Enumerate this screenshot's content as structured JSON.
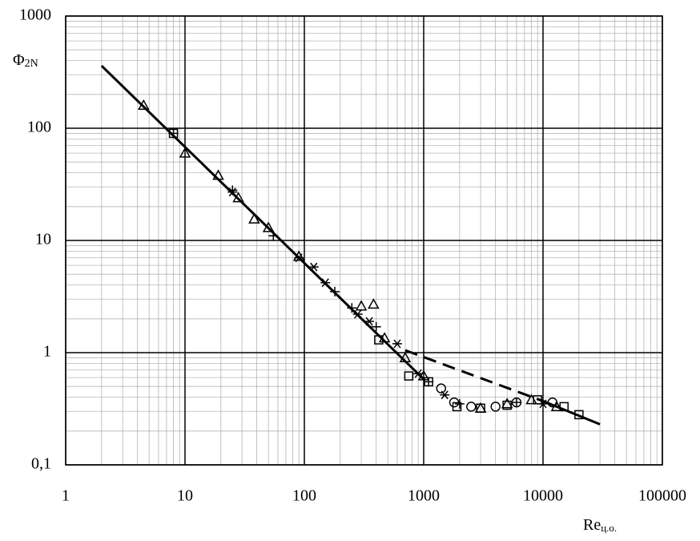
{
  "chart_data": {
    "type": "scatter",
    "y_label": {
      "symbol": "Φ",
      "subscript": "2N"
    },
    "x_label": {
      "symbol": "Re",
      "subscript": "ц.о."
    },
    "log_x": true,
    "log_y": true,
    "grid": true,
    "xlim": [
      1,
      100000
    ],
    "xticks": [
      1,
      10,
      100,
      1000,
      10000,
      100000
    ],
    "ylim": [
      0.1,
      1000
    ],
    "yticks": [
      {
        "value": 0.1,
        "label": "0,1"
      },
      1,
      10,
      100,
      1000
    ],
    "series": [
      {
        "mode": "line",
        "dash": false,
        "color": "#000000",
        "x": [
          2,
          1000
        ],
        "values": [
          360,
          0.58
        ]
      },
      {
        "mode": "line",
        "dash": true,
        "color": "#000000",
        "x": [
          700,
          10000
        ],
        "values": [
          1.05,
          0.37
        ]
      },
      {
        "mode": "line",
        "dash": false,
        "color": "#000000",
        "x": [
          10000,
          30000
        ],
        "values": [
          0.37,
          0.23
        ]
      },
      {
        "mode": "marker",
        "marker": "triangle",
        "color": "#000000",
        "x": [
          4.5,
          10,
          19,
          28,
          38,
          50,
          90,
          300,
          380,
          470,
          700,
          1000,
          3000,
          5000,
          8000,
          13000
        ],
        "values": [
          160,
          60,
          38,
          24,
          15.5,
          13,
          7.2,
          2.6,
          2.7,
          1.35,
          0.9,
          0.62,
          0.32,
          0.35,
          0.38,
          0.33
        ]
      },
      {
        "mode": "marker",
        "marker": "plus",
        "color": "#000000",
        "x": [
          8,
          25,
          55,
          180,
          250,
          400,
          1100,
          2000,
          6000
        ],
        "values": [
          90,
          28,
          11,
          3.5,
          2.5,
          1.7,
          0.55,
          0.35,
          0.36
        ]
      },
      {
        "mode": "marker",
        "marker": "asterisk",
        "color": "#000000",
        "x": [
          25,
          90,
          120,
          150,
          280,
          350,
          600,
          900,
          1500,
          10000
        ],
        "values": [
          27,
          7,
          5.8,
          4.2,
          2.2,
          1.9,
          1.2,
          0.65,
          0.42,
          0.35
        ]
      },
      {
        "mode": "marker",
        "marker": "square",
        "color": "#000000",
        "x": [
          8,
          420,
          750,
          1100,
          1900,
          3000,
          5000,
          9000,
          15000,
          20000
        ],
        "values": [
          90,
          1.3,
          0.62,
          0.55,
          0.33,
          0.32,
          0.34,
          0.38,
          0.33,
          0.28
        ]
      },
      {
        "mode": "marker",
        "marker": "circle",
        "color": "#000000",
        "x": [
          1400,
          1800,
          2500,
          4000,
          6000,
          12000
        ],
        "values": [
          0.48,
          0.36,
          0.33,
          0.33,
          0.36,
          0.36
        ]
      }
    ]
  }
}
